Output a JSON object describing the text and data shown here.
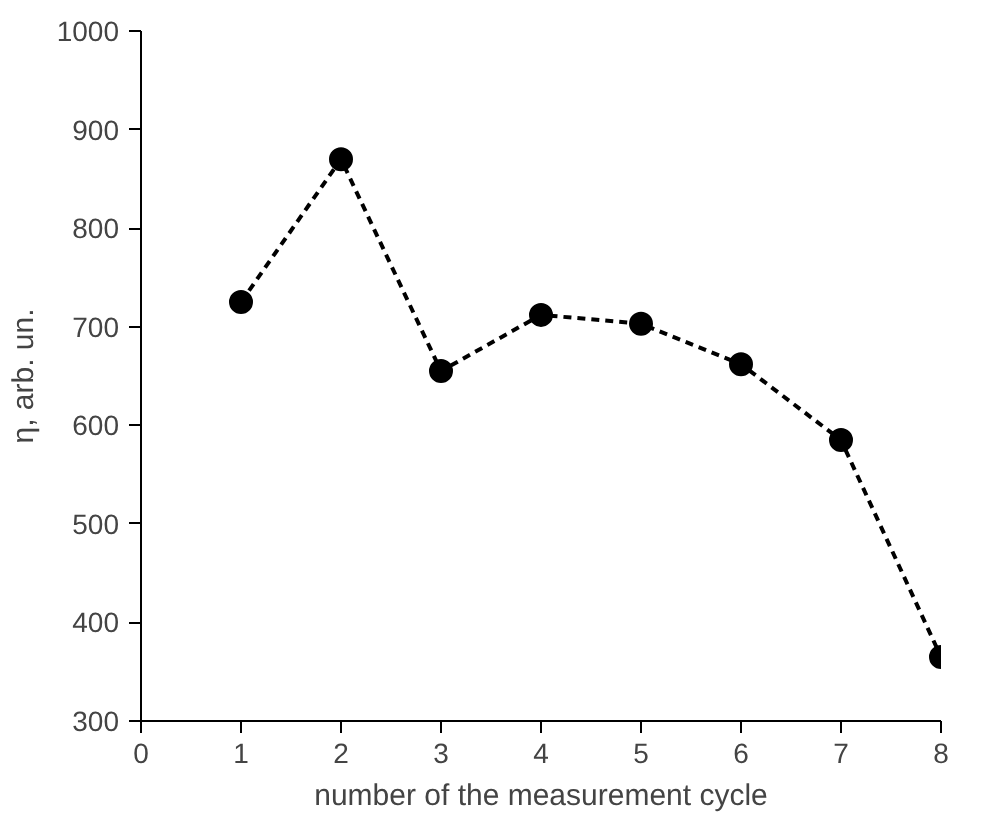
{
  "chart_data": {
    "type": "line",
    "xlabel": "number of the measurement cycle",
    "ylabel": "η, arb. un.",
    "x": [
      1,
      2,
      3,
      4,
      5,
      6,
      7,
      8
    ],
    "series": [
      {
        "color": "#000000",
        "values": [
          725,
          870,
          655,
          712,
          703,
          662,
          585,
          365
        ]
      }
    ],
    "xlim": [
      0,
      8
    ],
    "xticks": [
      0,
      1,
      2,
      3,
      4,
      5,
      6,
      7,
      8
    ],
    "ylim": [
      300,
      1000
    ],
    "yticks": [
      300,
      400,
      500,
      600,
      700,
      800,
      900,
      1000
    ],
    "grid": false,
    "marker": "circle",
    "line_style": "dashed"
  }
}
